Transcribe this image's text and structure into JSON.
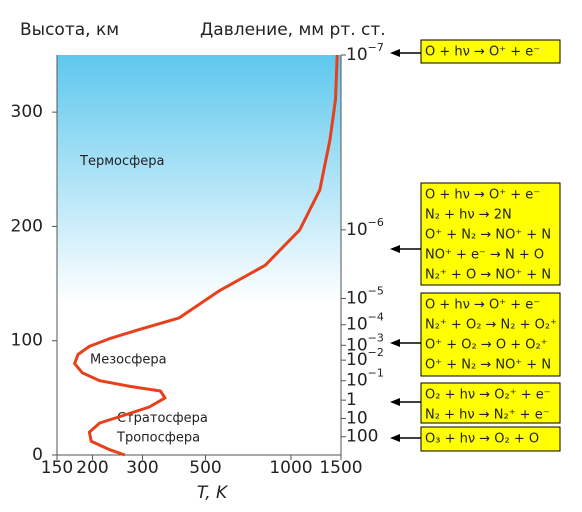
{
  "chart_data": {
    "type": "line",
    "y_title": "Высота, км",
    "y2_title": "Давление, мм рт. ст.",
    "x_title": "T, K",
    "xlim": [
      150,
      1500
    ],
    "xlog": true,
    "xticks": [
      150,
      200,
      300,
      500,
      1000,
      1500
    ],
    "ylim": [
      0,
      350
    ],
    "yticks": [
      0,
      100,
      200,
      300
    ],
    "series": [
      {
        "color": "#e8401c",
        "x": [
          260,
          228,
          198,
          195,
          212,
          260,
          317,
          360,
          347,
          271,
          212,
          184,
          173,
          178,
          195,
          231,
          294,
          404,
          562,
          811,
          1073,
          1263,
          1372,
          1435,
          1455
        ],
        "y": [
          0,
          5,
          12,
          20,
          28,
          35,
          42,
          50,
          56,
          60,
          65,
          72,
          80,
          88,
          95,
          102,
          110,
          120,
          144,
          166,
          197,
          232,
          276,
          311,
          350
        ]
      }
    ],
    "regions": [
      {
        "label": "Термосфера",
        "altitude": 257
      },
      {
        "label": "Мезосфера",
        "altitude": 83
      },
      {
        "label": "Стратосфера",
        "altitude": 32
      },
      {
        "label": "Тропосфера",
        "altitude": 15
      }
    ],
    "pressure_ticks": [
      {
        "value": 1e-07,
        "altitude": 350,
        "base": "10",
        "exponent": "−7"
      },
      {
        "value": 1e-06,
        "altitude": 197,
        "base": "10",
        "exponent": "−6"
      },
      {
        "value": 1e-05,
        "altitude": 137,
        "base": "10",
        "exponent": "−5"
      },
      {
        "value": 0.0001,
        "altitude": 114,
        "base": "10",
        "exponent": "−4"
      },
      {
        "value": 0.001,
        "altitude": 96,
        "base": "10",
        "exponent": "−3"
      },
      {
        "value": 0.01,
        "altitude": 83,
        "base": "10",
        "exponent": "−2"
      },
      {
        "value": 0.1,
        "altitude": 65,
        "base": "10",
        "exponent": "−1"
      },
      {
        "value": 1,
        "altitude": 48,
        "base": "1"
      },
      {
        "value": 10,
        "altitude": 32,
        "base": "10"
      },
      {
        "value": 100,
        "altitude": 16,
        "base": "100"
      }
    ],
    "reaction_groups": [
      {
        "lines": [
          "O + hν → O⁺ + e⁻"
        ]
      },
      {
        "lines": [
          "O + hν → O⁺ + e⁻",
          "N₂ + hν → 2N",
          "O⁺ + N₂ → NO⁺ + N",
          "NO⁺ + e⁻ → N + O",
          "N₂⁺ + O → NO⁺ + N"
        ]
      },
      {
        "lines": [
          "O + hν → O⁺ + e⁻",
          "N₂⁺ + O₂ → N₂ + O₂⁺",
          "O⁺ + O₂ → O + O₂⁺",
          "O⁺ + N₂ → NO⁺ + N"
        ]
      },
      {
        "lines": [
          "O₂ + hν → O₂⁺ + e⁻",
          "N₂ + hν → N₂⁺ + e⁻"
        ]
      },
      {
        "lines": [
          "O₃ + hν → O₂ + O"
        ]
      }
    ]
  }
}
